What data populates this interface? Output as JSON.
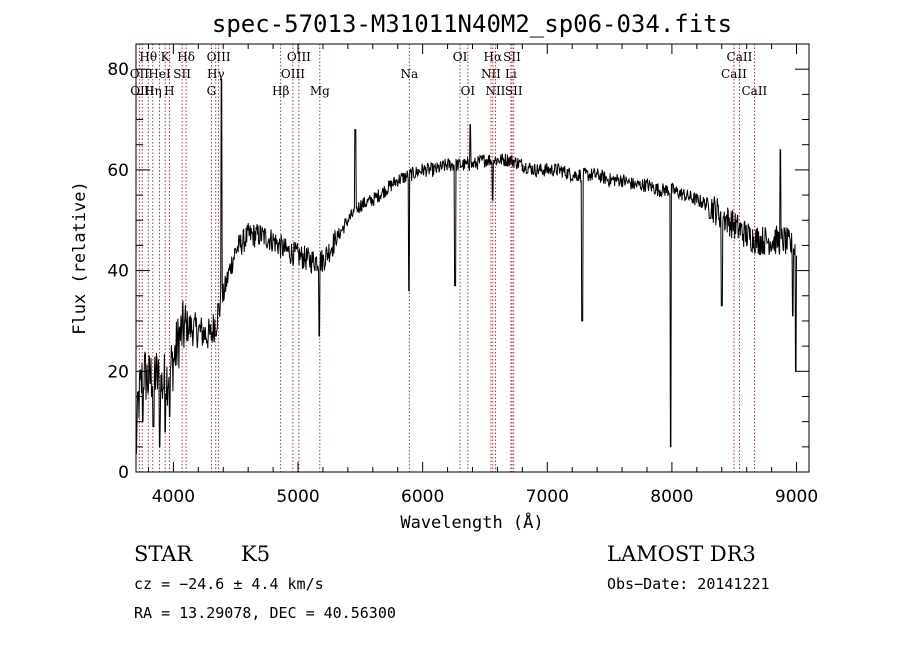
{
  "chart_data": {
    "type": "line",
    "title": "spec-57013-M31011N40M2_sp06-034.fits",
    "xlabel": "Wavelength (Å)",
    "ylabel": "Flux (relative)",
    "xlim": [
      3700,
      9100
    ],
    "ylim": [
      0,
      85
    ],
    "x_ticks": [
      4000,
      5000,
      6000,
      7000,
      8000,
      9000
    ],
    "y_ticks": [
      0,
      20,
      40,
      60,
      80
    ],
    "continuum": [
      [
        3700,
        4
      ],
      [
        3720,
        14
      ],
      [
        3760,
        20
      ],
      [
        3800,
        18
      ],
      [
        3850,
        20
      ],
      [
        3900,
        17
      ],
      [
        3950,
        19
      ],
      [
        4000,
        22
      ],
      [
        4050,
        27
      ],
      [
        4100,
        29
      ],
      [
        4200,
        28
      ],
      [
        4300,
        27
      ],
      [
        4350,
        31
      ],
      [
        4400,
        35
      ],
      [
        4450,
        40
      ],
      [
        4500,
        44
      ],
      [
        4600,
        47
      ],
      [
        4700,
        47
      ],
      [
        4800,
        46
      ],
      [
        4900,
        44
      ],
      [
        5000,
        43
      ],
      [
        5100,
        42
      ],
      [
        5200,
        42
      ],
      [
        5300,
        46
      ],
      [
        5400,
        50
      ],
      [
        5500,
        53
      ],
      [
        5600,
        54
      ],
      [
        5700,
        56
      ],
      [
        5800,
        58
      ],
      [
        5900,
        59
      ],
      [
        6000,
        60
      ],
      [
        6100,
        60
      ],
      [
        6200,
        61
      ],
      [
        6300,
        61
      ],
      [
        6400,
        61
      ],
      [
        6500,
        62
      ],
      [
        6600,
        62
      ],
      [
        6700,
        62
      ],
      [
        6800,
        61
      ],
      [
        6900,
        60
      ],
      [
        7000,
        60
      ],
      [
        7100,
        60
      ],
      [
        7200,
        59
      ],
      [
        7300,
        59
      ],
      [
        7400,
        59
      ],
      [
        7500,
        58
      ],
      [
        7600,
        58
      ],
      [
        7700,
        57
      ],
      [
        7800,
        57
      ],
      [
        7900,
        56
      ],
      [
        8000,
        56
      ],
      [
        8100,
        55
      ],
      [
        8200,
        54
      ],
      [
        8300,
        53
      ],
      [
        8400,
        51
      ],
      [
        8500,
        49
      ],
      [
        8600,
        47
      ],
      [
        8700,
        46
      ],
      [
        8800,
        46
      ],
      [
        8900,
        46
      ],
      [
        9000,
        44
      ]
    ],
    "features": [
      {
        "x": 3755,
        "y": 10
      },
      {
        "x": 3840,
        "y": 9
      },
      {
        "x": 3890,
        "y": 5
      },
      {
        "x": 3933,
        "y": 8
      },
      {
        "x": 3969,
        "y": 11
      },
      {
        "x": 4340,
        "y": 27
      },
      {
        "x": 4385,
        "y": 78
      },
      {
        "x": 5170,
        "y": 27
      },
      {
        "x": 5460,
        "y": 68
      },
      {
        "x": 5890,
        "y": 36
      },
      {
        "x": 6260,
        "y": 37
      },
      {
        "x": 6383,
        "y": 69
      },
      {
        "x": 6563,
        "y": 54
      },
      {
        "x": 7280,
        "y": 30
      },
      {
        "x": 7990,
        "y": 5
      },
      {
        "x": 8400,
        "y": 33
      },
      {
        "x": 8870,
        "y": 64
      },
      {
        "x": 8970,
        "y": 31
      },
      {
        "x": 8995,
        "y": 20
      }
    ],
    "spectral_lines": [
      {
        "label": "Hθ",
        "wavelength": 3798,
        "row": 0
      },
      {
        "label": "OII",
        "wavelength": 3727,
        "row": 1
      },
      {
        "label": "OIII",
        "wavelength": 3750,
        "row": 2
      },
      {
        "label": "Hη",
        "wavelength": 3835,
        "row": 2
      },
      {
        "label": "HeI",
        "wavelength": 3889,
        "row": 1
      },
      {
        "label": "K",
        "wavelength": 3934,
        "row": 0
      },
      {
        "label": "SII",
        "wavelength": 4070,
        "row": 1
      },
      {
        "label": "H",
        "wavelength": 3968,
        "row": 2
      },
      {
        "label": "Hδ",
        "wavelength": 4102,
        "row": 0
      },
      {
        "label": "OIII",
        "wavelength": 4363,
        "row": 0
      },
      {
        "label": "Hγ",
        "wavelength": 4340,
        "row": 1
      },
      {
        "label": "G",
        "wavelength": 4305,
        "row": 2
      },
      {
        "label": "Hβ",
        "wavelength": 4861,
        "row": 2
      },
      {
        "label": "OIII",
        "wavelength": 4959,
        "row": 1
      },
      {
        "label": "OIII",
        "wavelength": 5007,
        "row": 0
      },
      {
        "label": "Mg",
        "wavelength": 5175,
        "row": 2
      },
      {
        "label": "Na",
        "wavelength": 5893,
        "row": 1
      },
      {
        "label": "OI",
        "wavelength": 6300,
        "row": 0
      },
      {
        "label": "OI",
        "wavelength": 6363,
        "row": 2
      },
      {
        "label": "NII",
        "wavelength": 6548,
        "row": 1
      },
      {
        "label": "Hα",
        "wavelength": 6563,
        "row": 0
      },
      {
        "label": "NII",
        "wavelength": 6584,
        "row": 2
      },
      {
        "label": "SII",
        "wavelength": 6717,
        "row": 0
      },
      {
        "label": "Li",
        "wavelength": 6708,
        "row": 1
      },
      {
        "label": "SII",
        "wavelength": 6731,
        "row": 2
      },
      {
        "label": "CaII",
        "wavelength": 8542,
        "row": 0
      },
      {
        "label": "CaII",
        "wavelength": 8498,
        "row": 1
      },
      {
        "label": "CaII",
        "wavelength": 8662,
        "row": 2
      }
    ]
  },
  "info": {
    "object_class": "STAR",
    "subclass": "K5",
    "survey": "LAMOST DR3",
    "redshift": "cz = −24.6 ± 4.4 km/s",
    "obs_date": "Obs−Date: 20141221",
    "coords": "RA =  13.29078, DEC =  40.56300"
  }
}
